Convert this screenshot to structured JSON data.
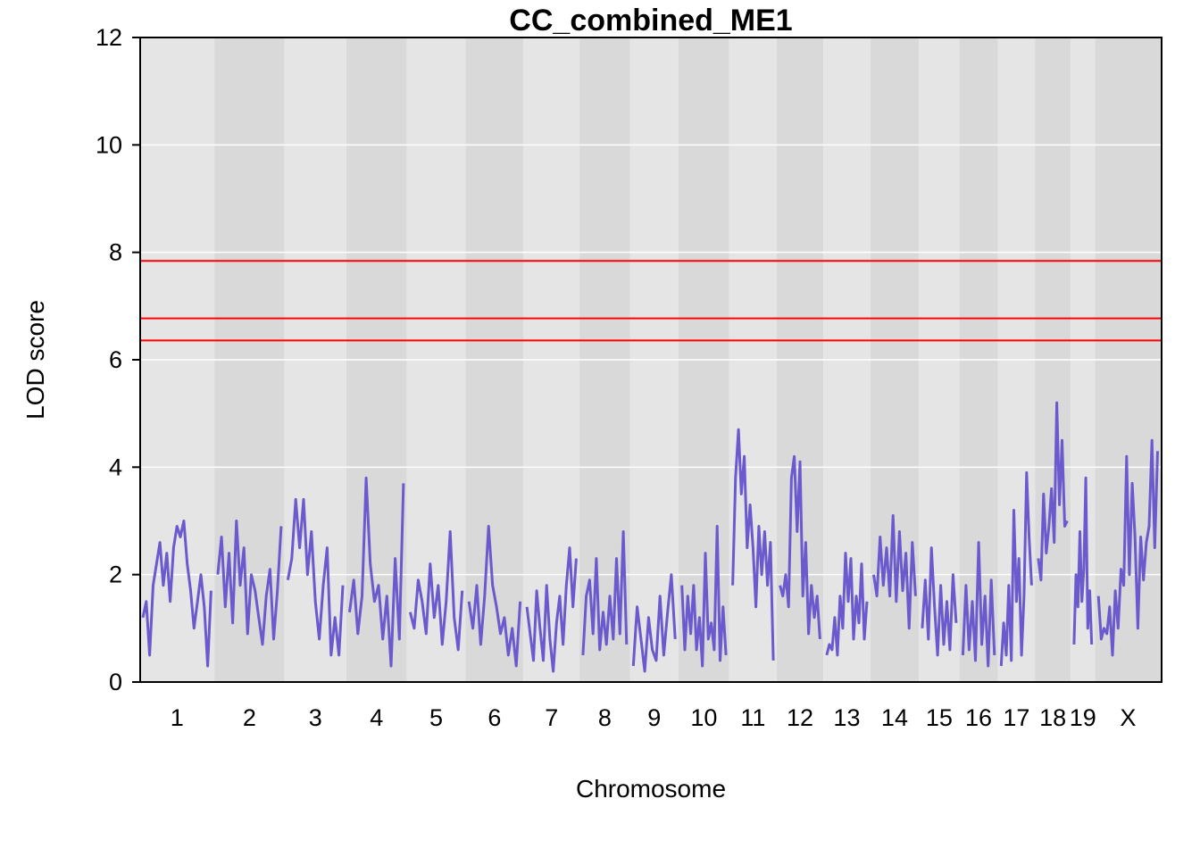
{
  "chart_data": {
    "type": "line",
    "title": "CC_combined_ME1",
    "xlabel": "Chromosome",
    "ylabel": "LOD score",
    "ylim": [
      0,
      12
    ],
    "yticks": [
      0,
      2,
      4,
      6,
      8,
      10,
      12
    ],
    "grid": true,
    "background_bands": true,
    "colors": {
      "series": "#6a5acd",
      "thresholds": "#ff0000",
      "band_light": "#e5e5e5",
      "band_dark": "#d9d9d9",
      "grid": "#ffffff"
    },
    "thresholds": [
      7.84,
      6.77,
      6.36
    ],
    "chromosomes": [
      "1",
      "2",
      "3",
      "4",
      "5",
      "6",
      "7",
      "8",
      "9",
      "10",
      "11",
      "12",
      "13",
      "14",
      "15",
      "16",
      "17",
      "18",
      "19",
      "X"
    ],
    "chromosome_lengths": [
      195,
      182,
      160,
      157,
      152,
      150,
      145,
      130,
      125,
      131,
      122,
      120,
      121,
      125,
      104,
      98,
      95,
      91,
      61,
      171
    ],
    "series": [
      {
        "values": [
          [
            [
              1.2,
              1.5,
              0.5,
              1.8,
              2.2,
              2.6,
              1.8,
              2.4,
              1.5,
              2.5,
              2.9,
              2.7,
              3.0,
              2.2,
              1.7,
              1.0,
              1.5,
              2.0,
              1.4,
              0.3,
              1.7
            ],
            [
              2.0,
              2.7,
              1.4,
              2.4,
              1.1,
              3.0,
              1.8,
              2.5,
              0.9,
              2.0,
              1.7,
              1.2,
              0.7,
              1.6,
              2.1,
              0.8,
              1.7,
              2.9
            ],
            [
              1.9,
              2.3,
              3.4,
              2.5,
              3.4,
              2.0,
              2.8,
              1.5,
              0.8,
              1.8,
              2.5,
              0.5,
              1.2,
              0.5,
              1.8
            ],
            [
              1.3,
              1.9,
              0.9,
              1.6,
              3.8,
              2.2,
              1.5,
              1.8,
              0.8,
              1.6,
              0.3,
              2.3,
              0.8,
              3.7
            ],
            [
              1.3,
              1.0,
              1.9,
              1.5,
              0.9,
              2.2,
              1.2,
              1.8,
              0.7,
              1.5,
              2.8,
              1.2,
              0.6,
              1.7
            ],
            [
              1.5,
              1.0,
              1.8,
              0.7,
              1.6,
              2.9,
              1.8,
              1.4,
              0.9,
              1.2,
              0.5,
              1.0,
              0.3,
              1.5
            ],
            [
              1.4,
              0.9,
              0.4,
              1.7,
              1.0,
              0.4,
              1.8,
              0.8,
              0.2,
              1.1,
              1.6,
              0.7,
              1.8,
              2.5,
              1.4,
              2.3
            ],
            [
              0.5,
              1.6,
              1.9,
              0.9,
              2.3,
              0.6,
              1.3,
              0.7,
              1.6,
              0.8,
              2.3,
              0.9,
              2.8,
              0.7
            ],
            [
              0.3,
              1.4,
              0.8,
              0.2,
              1.2,
              0.6,
              0.4,
              1.6,
              0.5,
              1.3,
              2.0,
              0.8
            ],
            [
              1.8,
              0.6,
              1.6,
              0.9,
              1.8,
              0.6,
              1.2,
              0.3,
              2.4,
              0.8,
              1.1,
              0.6,
              2.9,
              0.4,
              1.4,
              0.5
            ],
            [
              1.8,
              3.8,
              4.7,
              3.5,
              4.2,
              2.5,
              3.3,
              2.5,
              1.4,
              2.9,
              2.0,
              2.8,
              1.8,
              2.6,
              0.4
            ],
            [
              1.8,
              1.6,
              2.0,
              1.4,
              3.8,
              4.2,
              2.8,
              4.1,
              1.6,
              2.6,
              0.9,
              1.8,
              1.2,
              1.6,
              0.8
            ],
            [
              0.5,
              0.7,
              0.6,
              1.2,
              0.5,
              1.6,
              1.0,
              2.4,
              1.5,
              2.3,
              0.8,
              1.6,
              1.1,
              2.2,
              0.8,
              1.5
            ],
            [
              2.0,
              1.6,
              2.7,
              1.8,
              2.5,
              1.6,
              3.1,
              1.5,
              2.8,
              1.7,
              2.4,
              1.0,
              2.6,
              1.6
            ],
            [
              1.0,
              1.9,
              0.8,
              2.5,
              1.4,
              0.5,
              1.8,
              0.7,
              1.5,
              0.6,
              2.0,
              1.1
            ],
            [
              0.5,
              1.8,
              0.6,
              1.5,
              0.4,
              2.6,
              0.7,
              1.6,
              0.3,
              1.9,
              0.5
            ],
            [
              0.3,
              1.1,
              0.5,
              1.8,
              0.4,
              3.2,
              1.5,
              2.3,
              0.5,
              1.6,
              3.9,
              2.7,
              1.8
            ],
            [
              2.3,
              1.9,
              3.5,
              2.4,
              2.9,
              3.6,
              2.6,
              5.2,
              3.3,
              4.5,
              2.9,
              3.0
            ],
            [
              0.7,
              2.0,
              1.4,
              2.8,
              1.5,
              2.1,
              3.8,
              1.0,
              1.7,
              0.7
            ],
            [
              1.6,
              0.8,
              1.0,
              0.9,
              1.4,
              0.5,
              1.7,
              1.0,
              2.1,
              1.8,
              4.2,
              2.0,
              3.7,
              2.7,
              1.0,
              2.7,
              1.9,
              2.6,
              2.9,
              4.5,
              2.5,
              4.3
            ]
          ]
        ]
      }
    ]
  }
}
